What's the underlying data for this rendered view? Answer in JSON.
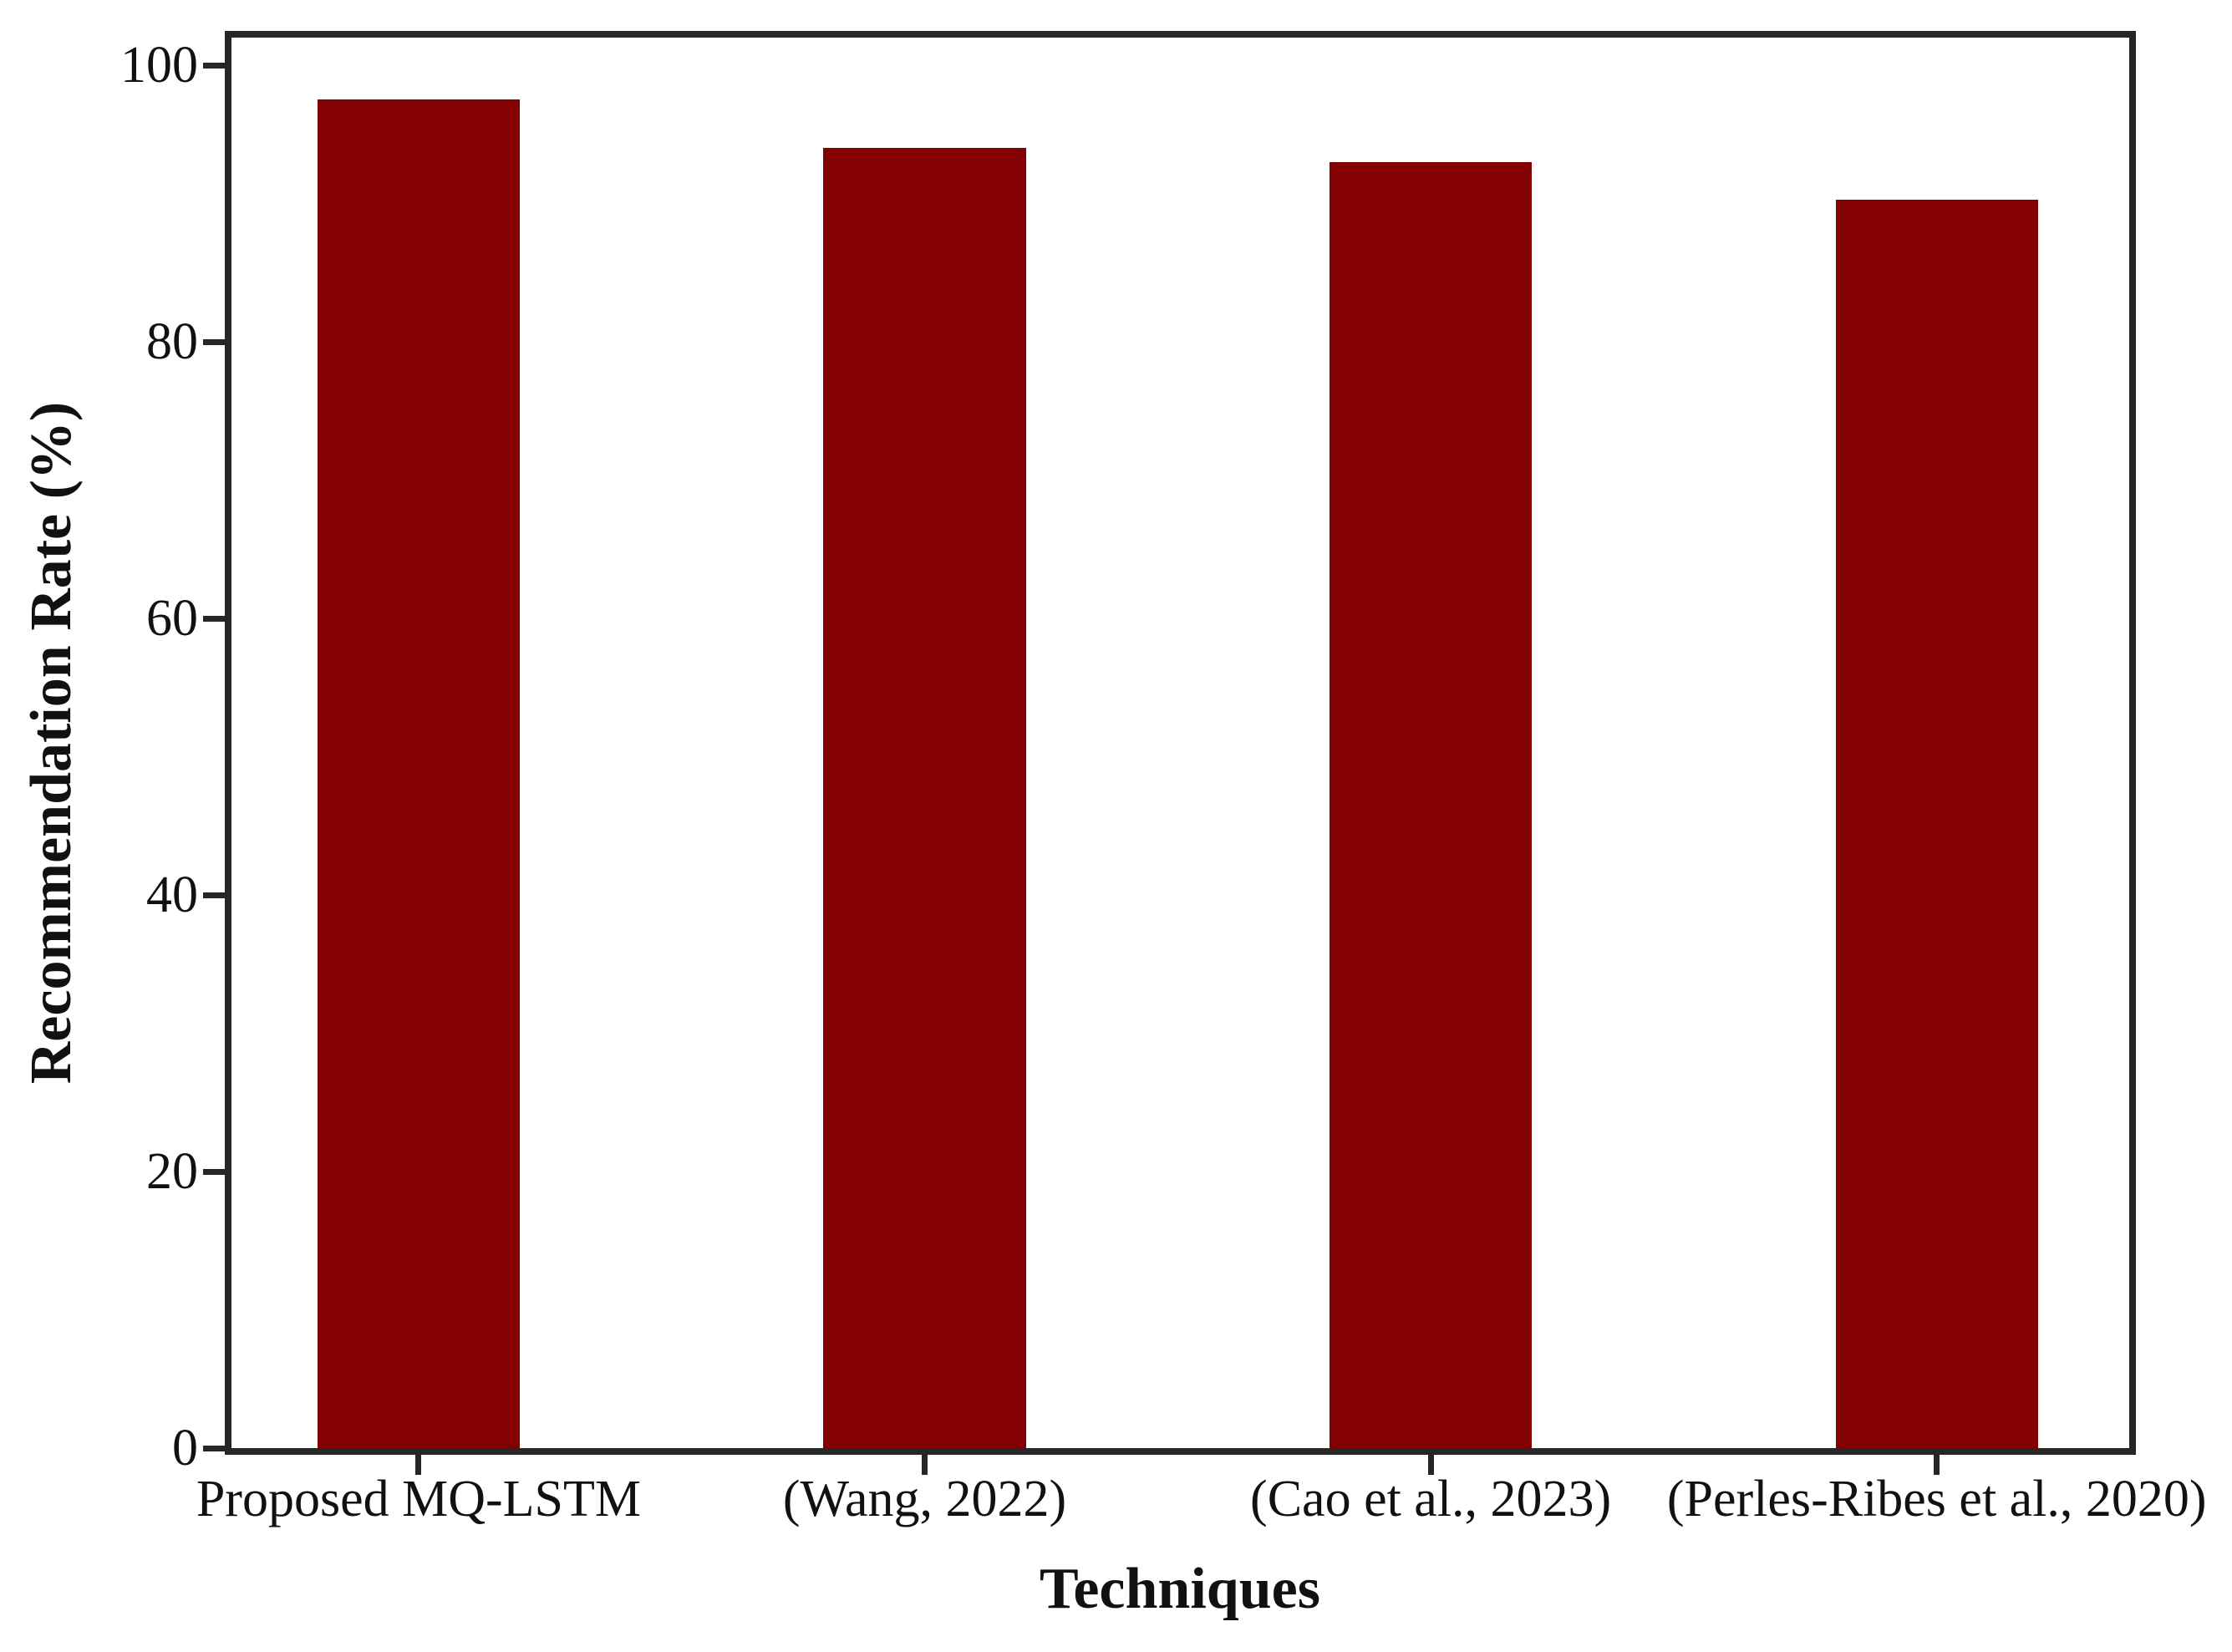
{
  "chart_data": {
    "type": "bar",
    "title": "",
    "categories": [
      "Proposed MQ-LSTM",
      "(Wang, 2022)",
      "(Cao et al., 2023)",
      "(Perles-Ribes et al., 2020)"
    ],
    "values": [
      97.5,
      94,
      93,
      90.3
    ],
    "xlabel": "Techniques",
    "ylabel": "Recommendation Rate (%)",
    "ylim": [
      0,
      102
    ],
    "yticks": [
      0,
      20,
      40,
      60,
      80,
      100
    ],
    "grid": false,
    "legend": null,
    "bar_color": "#830103",
    "axis_color": "#262626",
    "background": "#ffffff"
  }
}
